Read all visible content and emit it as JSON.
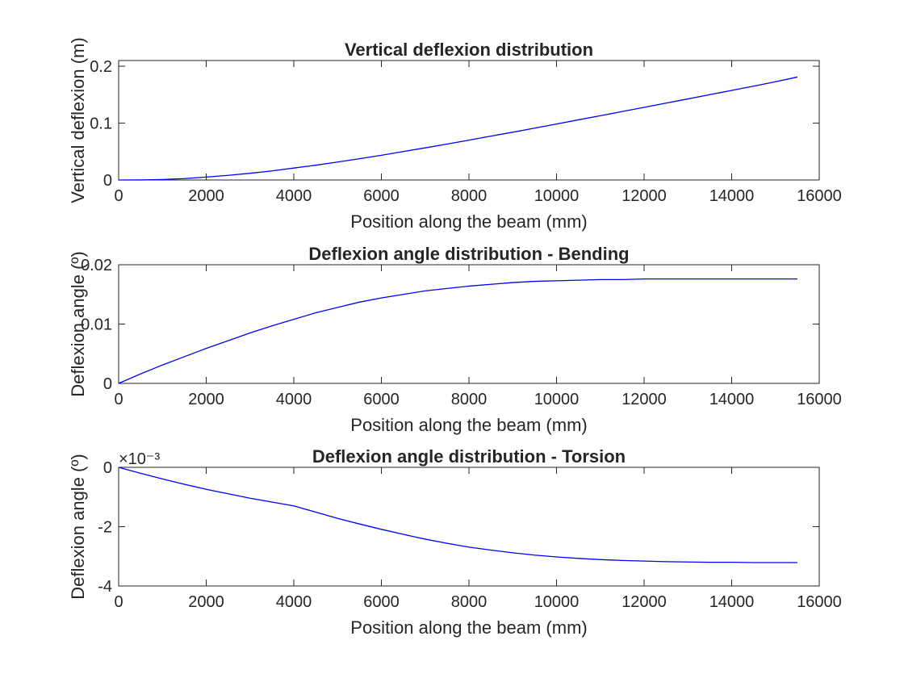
{
  "colors": {
    "line": "#0000ff",
    "axis": "#262626",
    "background": "#ffffff"
  },
  "chart_data": [
    {
      "type": "line",
      "title": "Vertical deflexion distribution",
      "xlabel": "Position along the beam (mm)",
      "ylabel": "Vertical deflexion (m)",
      "xlim": [
        0,
        16000
      ],
      "ylim": [
        0,
        0.21
      ],
      "xticks": [
        0,
        2000,
        4000,
        6000,
        8000,
        10000,
        12000,
        14000,
        16000
      ],
      "yticks": [
        0,
        0.1,
        0.2
      ],
      "ytick_labels": [
        "0",
        "0.1",
        "0.2"
      ],
      "exponent_label": "",
      "grid": false,
      "series": [
        {
          "x": [
            0,
            500,
            1000,
            1500,
            2000,
            2500,
            3000,
            3500,
            4000,
            4500,
            5000,
            5500,
            6000,
            6500,
            7000,
            7500,
            8000,
            8500,
            9000,
            9500,
            10000,
            10500,
            11000,
            11500,
            12000,
            12500,
            13000,
            13500,
            14000,
            14500,
            15000,
            15500
          ],
          "values": [
            0,
            0.0001,
            0.0009,
            0.0025,
            0.0052,
            0.0082,
            0.0118,
            0.016,
            0.021,
            0.026,
            0.0316,
            0.0374,
            0.0435,
            0.05,
            0.0565,
            0.0632,
            0.07,
            0.0772,
            0.084,
            0.0912,
            0.0985,
            0.1058,
            0.113,
            0.1204,
            0.1277,
            0.1351,
            0.1425,
            0.15,
            0.1575,
            0.165,
            0.1728,
            0.181
          ]
        }
      ]
    },
    {
      "type": "line",
      "title": "Deflexion angle distribution - Bending",
      "xlabel": "Position along the beam (mm)",
      "ylabel": "Deflexion angle (º)",
      "xlim": [
        0,
        16000
      ],
      "ylim": [
        0,
        0.02
      ],
      "xticks": [
        0,
        2000,
        4000,
        6000,
        8000,
        10000,
        12000,
        14000,
        16000
      ],
      "yticks": [
        0,
        0.01,
        0.02
      ],
      "ytick_labels": [
        "0",
        "0.01",
        "0.02"
      ],
      "exponent_label": "",
      "grid": false,
      "series": [
        {
          "x": [
            0,
            500,
            1000,
            1500,
            2000,
            2500,
            3000,
            3500,
            4000,
            4500,
            5000,
            5500,
            6000,
            6500,
            7000,
            7500,
            8000,
            8500,
            9000,
            9500,
            10000,
            10500,
            11000,
            11500,
            12000,
            12500,
            13000,
            13500,
            14000,
            14500,
            15000,
            15500
          ],
          "values": [
            0,
            0.0016,
            0.0031,
            0.0045,
            0.0059,
            0.0072,
            0.0085,
            0.0097,
            0.0108,
            0.0119,
            0.0128,
            0.0137,
            0.0144,
            0.015,
            0.0156,
            0.016,
            0.0164,
            0.0167,
            0.017,
            0.0172,
            0.0173,
            0.0174,
            0.0175,
            0.0175,
            0.0176,
            0.0176,
            0.0176,
            0.0176,
            0.0176,
            0.0176,
            0.0176,
            0.0176
          ]
        }
      ]
    },
    {
      "type": "line",
      "title": "Deflexion angle distribution - Torsion",
      "xlabel": "Position along the beam (mm)",
      "ylabel": "Deflexion angle (º)",
      "xlim": [
        0,
        16000
      ],
      "ylim": [
        -0.004,
        0
      ],
      "xticks": [
        0,
        2000,
        4000,
        6000,
        8000,
        10000,
        12000,
        14000,
        16000
      ],
      "yticks": [
        -0.004,
        -0.002,
        0
      ],
      "ytick_labels": [
        "-4",
        "-2",
        "0"
      ],
      "exponent_label": "×10⁻³",
      "grid": false,
      "series": [
        {
          "x": [
            0,
            500,
            1000,
            1500,
            2000,
            2500,
            3000,
            3500,
            4000,
            4500,
            5000,
            5500,
            6000,
            6500,
            7000,
            7500,
            8000,
            8500,
            9000,
            9500,
            10000,
            10500,
            11000,
            11500,
            12000,
            12500,
            13000,
            13500,
            14000,
            14500,
            15000,
            15500
          ],
          "values": [
            0,
            -0.0002,
            -0.00039,
            -0.00057,
            -0.00074,
            -0.00089,
            -0.00104,
            -0.00117,
            -0.0013,
            -0.00151,
            -0.00172,
            -0.00191,
            -0.00209,
            -0.00226,
            -0.00242,
            -0.00256,
            -0.00269,
            -0.00279,
            -0.00288,
            -0.00296,
            -0.00302,
            -0.00307,
            -0.00311,
            -0.00314,
            -0.00316,
            -0.00318,
            -0.00319,
            -0.0032,
            -0.0032,
            -0.00321,
            -0.00321,
            -0.00321
          ]
        }
      ]
    }
  ]
}
